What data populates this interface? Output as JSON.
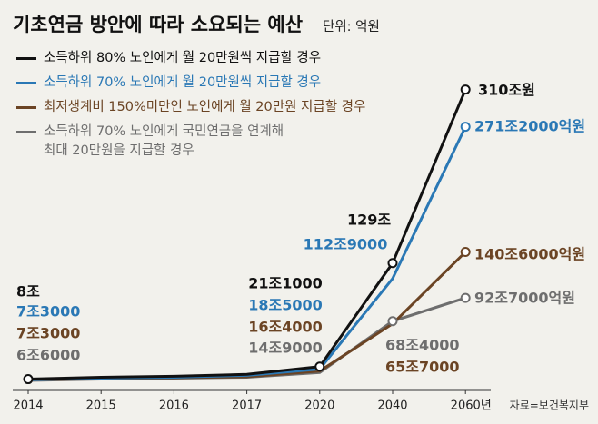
{
  "chart_data": {
    "type": "line",
    "title": "기초연금 방안에 따라 소요되는 예산",
    "unit": "단위: 억원",
    "source": "자료=보건복지부",
    "categories": [
      "2014",
      "2015",
      "2016",
      "2017",
      "2020",
      "2040",
      "2060년"
    ],
    "series": [
      {
        "name": "소득하위 80% 노인에게 월 20만원씩 지급할 경우",
        "color": "#111111",
        "values": [
          80000,
          100000,
          110000,
          130000,
          211000,
          1290000,
          3100000
        ],
        "value_labels": [
          "8조",
          null,
          null,
          null,
          "21조1000",
          "129조",
          "310조원"
        ]
      },
      {
        "name": "소득하위 70% 노인에게 월 20만원씩 지급할 경우",
        "color": "#2a78b5",
        "values": [
          73000,
          90000,
          100000,
          120000,
          185000,
          1129000,
          2712000
        ],
        "value_labels": [
          "7조3000",
          null,
          null,
          null,
          "18조5000",
          "112조9000",
          "271조2000억원"
        ]
      },
      {
        "name": "최저생계비 150%미만인 노인에게 월 20만원 지급할 경우",
        "color": "#6b4424",
        "values": [
          73000,
          85000,
          95000,
          105000,
          164000,
          657000,
          1406000
        ],
        "value_labels": [
          "7조3000",
          null,
          null,
          null,
          "16조4000",
          "65조7000",
          "140조6000억원"
        ]
      },
      {
        "name": "소득하위 70% 노인에게 국민연금을 연계해\n최대 20만원을 지급할 경우",
        "color": "#6e6e6e",
        "values": [
          66000,
          80000,
          90000,
          100000,
          149000,
          684000,
          927000
        ],
        "value_labels": [
          "6조6000",
          null,
          null,
          null,
          "14조9000",
          "68조4000",
          "92조7000억원"
        ]
      }
    ]
  }
}
